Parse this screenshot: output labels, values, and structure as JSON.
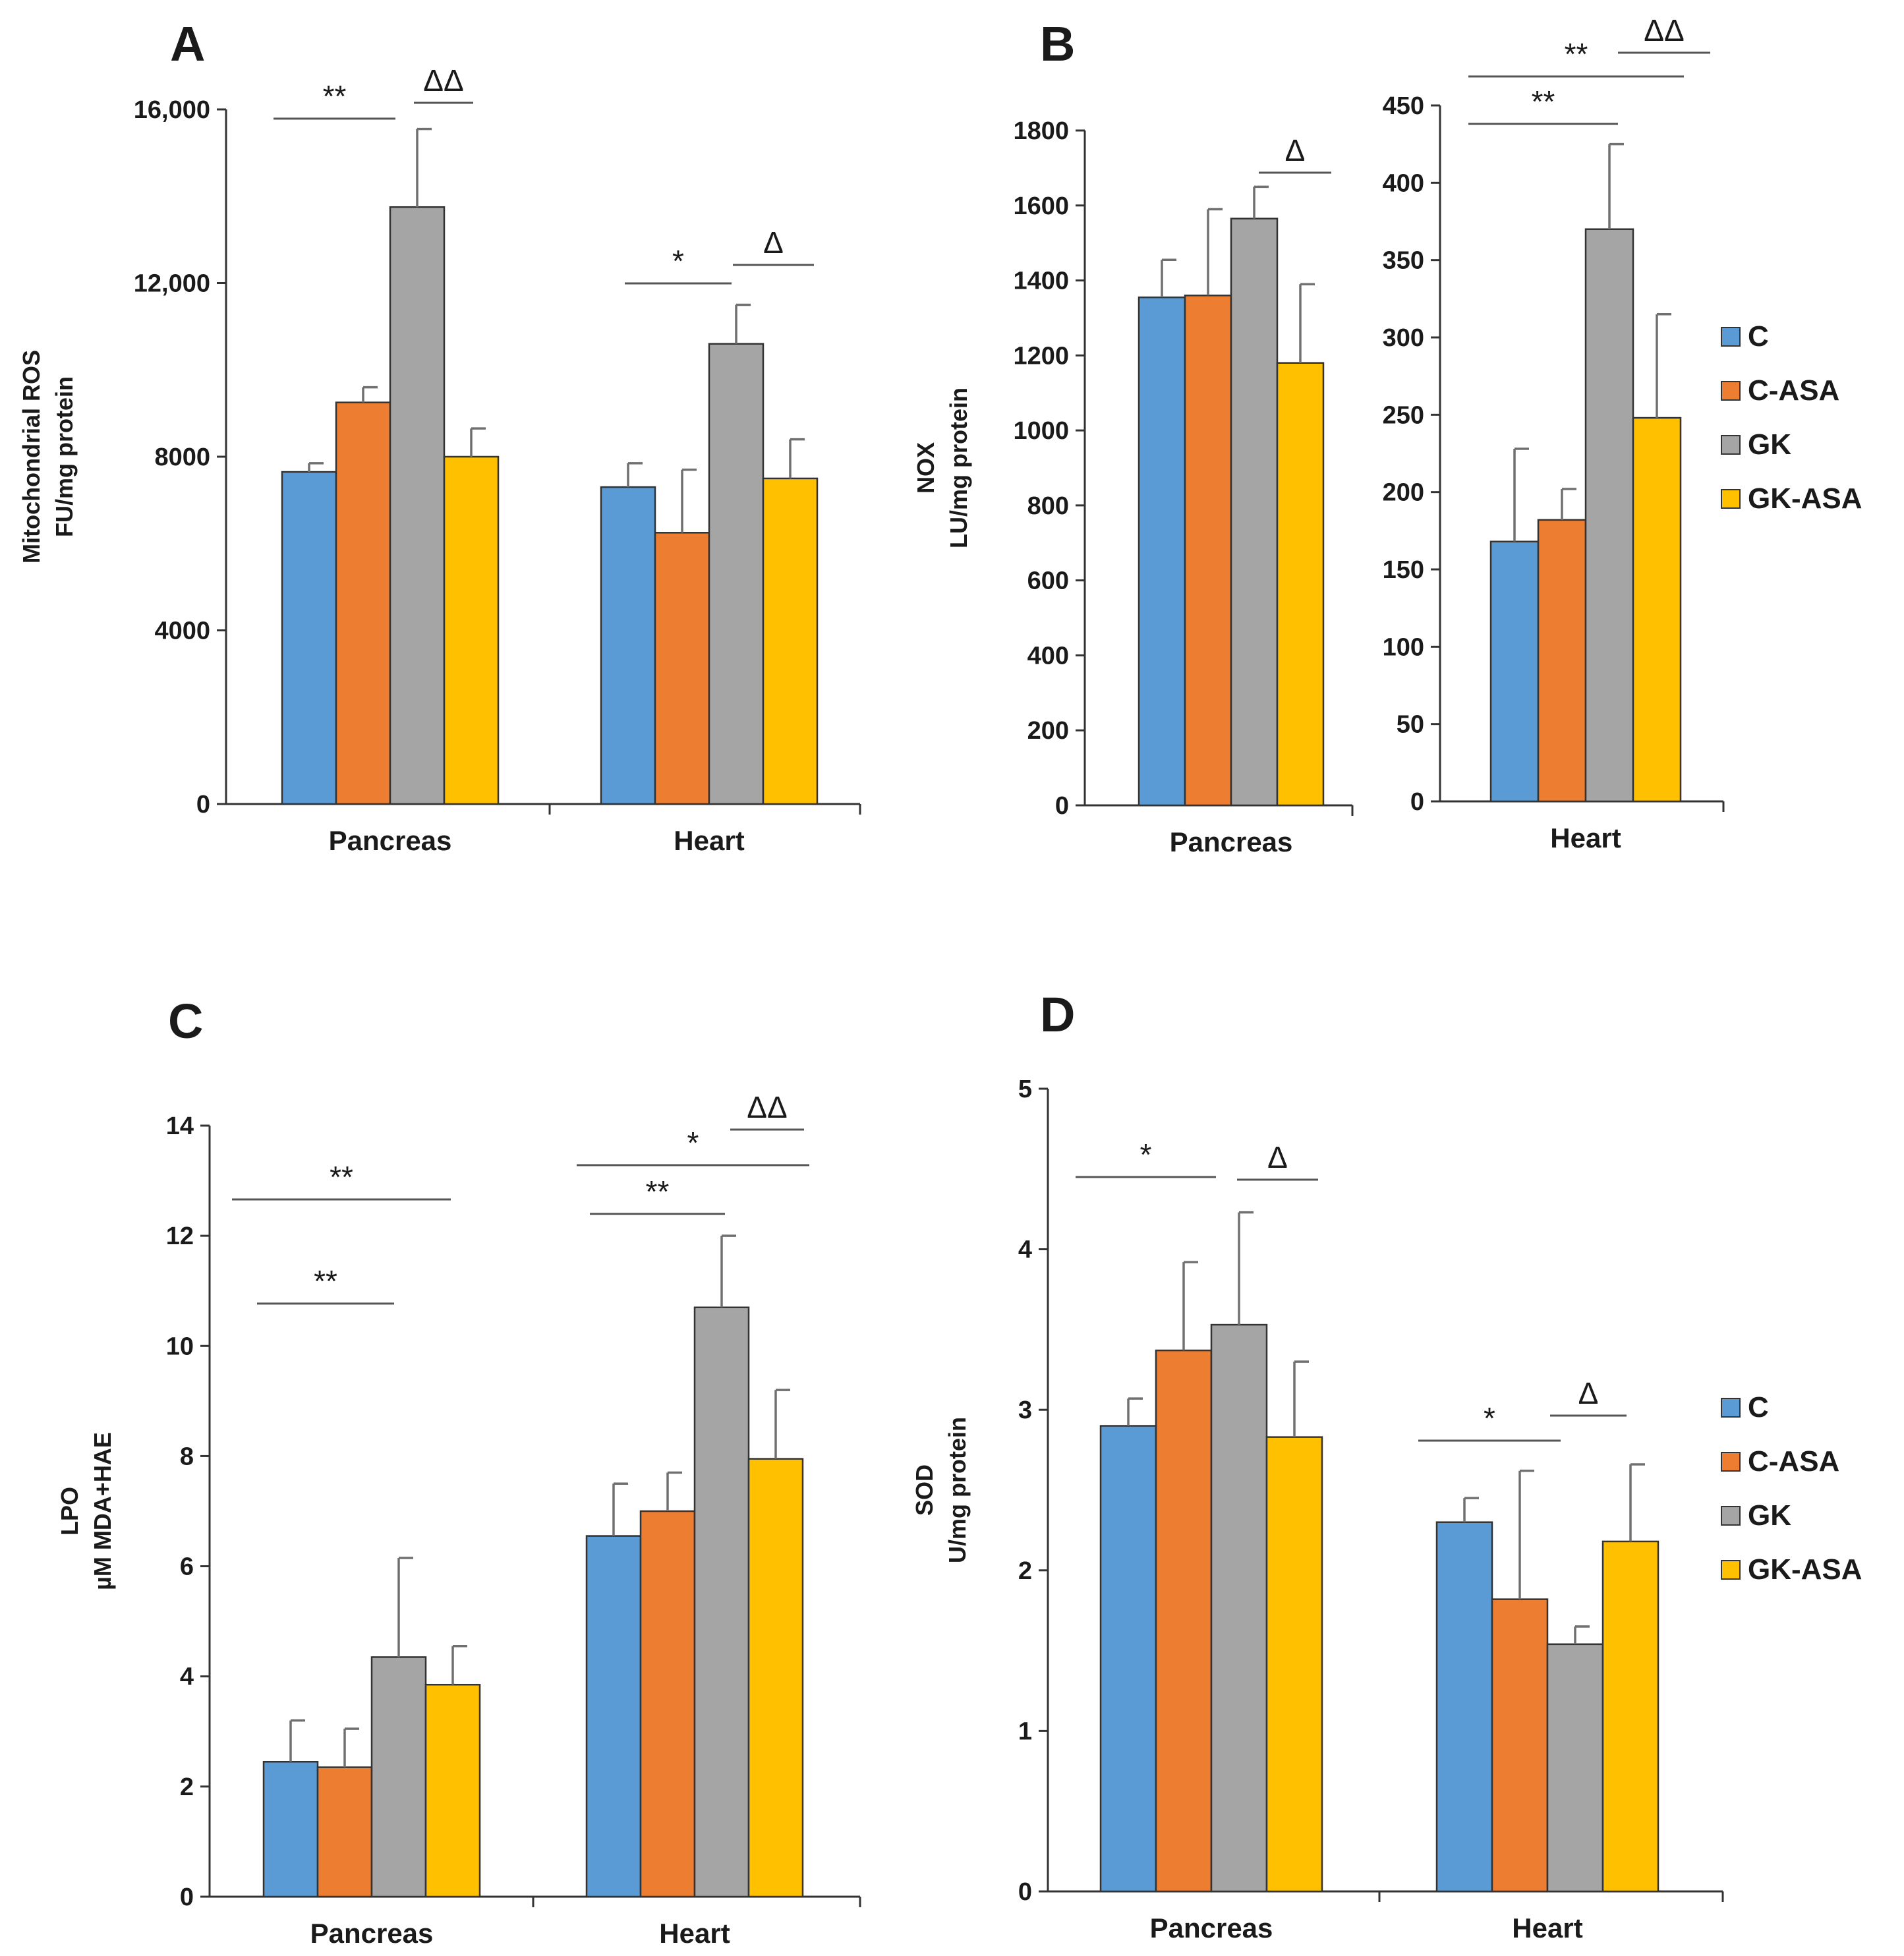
{
  "colors": {
    "C": "#5b9bd5",
    "C-ASA": "#ed7d31",
    "GK": "#a5a5a5",
    "GK-ASA": "#ffc000"
  },
  "chart_data": [
    {
      "id": "A",
      "type": "bar",
      "panel_label": "A",
      "ylabel": [
        "Mitochondrial ROS",
        "FU/mg protein"
      ],
      "ylim": [
        0,
        16000
      ],
      "yticks": [
        0,
        4000,
        8000,
        12000,
        16000
      ],
      "ytick_labels": [
        "0",
        "4000",
        "8000",
        "12,000",
        "16,000"
      ],
      "categories": [
        "Pancreas",
        "Heart"
      ],
      "series": [
        {
          "name": "C",
          "values": [
            7650,
            7300
          ],
          "errors": [
            200,
            550
          ]
        },
        {
          "name": "C-ASA",
          "values": [
            9250,
            6250
          ],
          "errors": [
            350,
            1450
          ]
        },
        {
          "name": "GK",
          "values": [
            13750,
            10600
          ],
          "errors": [
            1800,
            900
          ]
        },
        {
          "name": "GK-ASA",
          "values": [
            8000,
            7500
          ],
          "errors": [
            650,
            900
          ]
        }
      ],
      "significance": [
        {
          "label": "**",
          "category": 0,
          "from": 0,
          "to": 2
        },
        {
          "label": "ΔΔ",
          "category": 0,
          "from": 2,
          "to": 3
        },
        {
          "label": "*",
          "category": 1,
          "from": 0,
          "to": 2
        },
        {
          "label": "Δ",
          "category": 1,
          "from": 2,
          "to": 3
        }
      ]
    },
    {
      "id": "B1",
      "type": "bar",
      "panel_label": "B",
      "ylabel": [
        "NOX",
        "LU/mg protein"
      ],
      "ylim": [
        0,
        1800
      ],
      "yticks": [
        0,
        200,
        400,
        600,
        800,
        1000,
        1200,
        1400,
        1600,
        1800
      ],
      "ytick_labels": [
        "0",
        "200",
        "400",
        "600",
        "800",
        "1000",
        "1200",
        "1400",
        "1600",
        "1800"
      ],
      "categories": [
        "Pancreas"
      ],
      "series": [
        {
          "name": "C",
          "values": [
            1355
          ],
          "errors": [
            100
          ]
        },
        {
          "name": "C-ASA",
          "values": [
            1360
          ],
          "errors": [
            230
          ]
        },
        {
          "name": "GK",
          "values": [
            1565
          ],
          "errors": [
            85
          ]
        },
        {
          "name": "GK-ASA",
          "values": [
            1180
          ],
          "errors": [
            210
          ]
        }
      ],
      "significance": [
        {
          "label": "Δ",
          "category": 0,
          "from": 2,
          "to": 3
        }
      ]
    },
    {
      "id": "B2",
      "type": "bar",
      "ylim": [
        0,
        450
      ],
      "yticks": [
        0,
        50,
        100,
        150,
        200,
        250,
        300,
        350,
        400,
        450
      ],
      "ytick_labels": [
        "0",
        "50",
        "100",
        "150",
        "200",
        "250",
        "300",
        "350",
        "400",
        "450"
      ],
      "categories": [
        "Heart"
      ],
      "series": [
        {
          "name": "C",
          "values": [
            168
          ],
          "errors": [
            60
          ]
        },
        {
          "name": "C-ASA",
          "values": [
            182
          ],
          "errors": [
            20
          ]
        },
        {
          "name": "GK",
          "values": [
            370
          ],
          "errors": [
            55
          ]
        },
        {
          "name": "GK-ASA",
          "values": [
            248
          ],
          "errors": [
            67
          ]
        }
      ],
      "significance": [
        {
          "label": "**",
          "category": 0,
          "from": 0,
          "to": 2
        },
        {
          "label": "**",
          "category": 0,
          "from": 0,
          "to": 3
        },
        {
          "label": "ΔΔ",
          "category": 0,
          "from": 2,
          "to": 3
        }
      ]
    },
    {
      "id": "C",
      "type": "bar",
      "panel_label": "C",
      "ylabel": [
        "LPO",
        "µM MDA+HAE"
      ],
      "ylim": [
        0,
        14
      ],
      "yticks": [
        0,
        2,
        4,
        6,
        8,
        10,
        12,
        14
      ],
      "ytick_labels": [
        "0",
        "2",
        "4",
        "6",
        "8",
        "10",
        "12",
        "14"
      ],
      "categories": [
        "Pancreas",
        "Heart"
      ],
      "series": [
        {
          "name": "C",
          "values": [
            2.45,
            6.55
          ],
          "errors": [
            0.75,
            0.95
          ]
        },
        {
          "name": "C-ASA",
          "values": [
            2.35,
            7.0
          ],
          "errors": [
            0.7,
            0.7
          ]
        },
        {
          "name": "GK",
          "values": [
            4.35,
            10.7
          ],
          "errors": [
            1.8,
            1.3
          ]
        },
        {
          "name": "GK-ASA",
          "values": [
            3.85,
            7.95
          ],
          "errors": [
            0.7,
            1.25
          ]
        }
      ],
      "significance": [
        {
          "label": "**",
          "category": 0,
          "from": 0,
          "to": 2
        },
        {
          "label": "**",
          "category": 0,
          "from": 0,
          "to": 3
        },
        {
          "label": "**",
          "category": 1,
          "from": 0,
          "to": 2
        },
        {
          "label": "*",
          "category": 1,
          "from": 0,
          "to": 3
        },
        {
          "label": "ΔΔ",
          "category": 1,
          "from": 2,
          "to": 3
        }
      ]
    },
    {
      "id": "D",
      "type": "bar",
      "panel_label": "D",
      "ylabel": [
        "SOD",
        "U/mg protein"
      ],
      "ylim": [
        0,
        5
      ],
      "yticks": [
        0,
        1,
        2,
        3,
        4,
        5
      ],
      "ytick_labels": [
        "0",
        "1",
        "2",
        "3",
        "4",
        "5"
      ],
      "categories": [
        "Pancreas",
        "Heart"
      ],
      "series": [
        {
          "name": "C",
          "values": [
            2.9,
            2.3
          ],
          "errors": [
            0.17,
            0.15
          ]
        },
        {
          "name": "C-ASA",
          "values": [
            3.37,
            1.82
          ],
          "errors": [
            0.55,
            0.8
          ]
        },
        {
          "name": "GK",
          "values": [
            3.53,
            1.54
          ],
          "errors": [
            0.7,
            0.11
          ]
        },
        {
          "name": "GK-ASA",
          "values": [
            2.83,
            2.18
          ],
          "errors": [
            0.47,
            0.48
          ]
        }
      ],
      "significance": [
        {
          "label": "*",
          "category": 0,
          "from": 0,
          "to": 2
        },
        {
          "label": "Δ",
          "category": 0,
          "from": 2,
          "to": 3
        },
        {
          "label": "*",
          "category": 1,
          "from": 0,
          "to": 2
        },
        {
          "label": "Δ",
          "category": 1,
          "from": 2,
          "to": 3
        }
      ]
    }
  ],
  "legends": [
    {
      "id": "legend-top",
      "items": [
        "C",
        "C-ASA",
        "GK",
        "GK-ASA"
      ]
    },
    {
      "id": "legend-bottom",
      "items": [
        "C",
        "C-ASA",
        "GK",
        "GK-ASA"
      ]
    }
  ]
}
